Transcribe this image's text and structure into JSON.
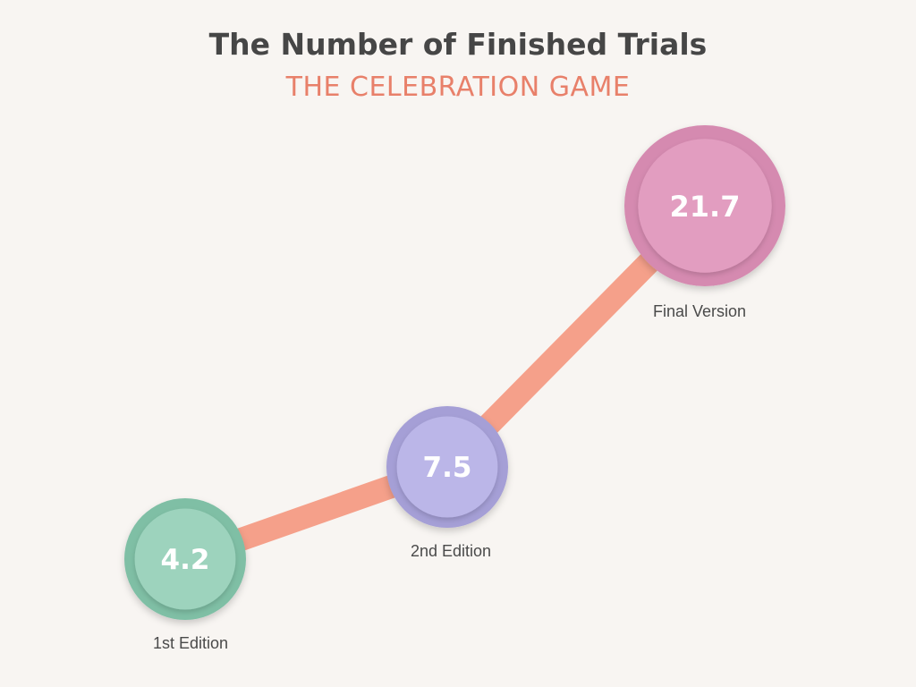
{
  "title": "The Number of Finished Trials",
  "subtitle": "THE CELEBRATION GAME",
  "colors": {
    "background": "#f8f5f2",
    "line": "#f5a08a",
    "title": "#464646",
    "subtitle": "#e8806a"
  },
  "chart_data": {
    "type": "line",
    "title": "The Number of Finished Trials",
    "subtitle": "THE CELEBRATION GAME",
    "categories": [
      "1st Edition",
      "2nd Edition",
      "Final Version"
    ],
    "values": [
      4.2,
      7.5,
      21.7
    ],
    "value_labels": [
      "4.2",
      "7.5",
      "21.7"
    ],
    "point_colors": [
      {
        "outer": "#7fbfa5",
        "inner": "#9dd3bd"
      },
      {
        "outer": "#a59fd6",
        "inner": "#bbb6e8"
      },
      {
        "outer": "#d58ab0",
        "inner": "#e29dc0"
      }
    ],
    "grid": false,
    "legend": "none"
  }
}
